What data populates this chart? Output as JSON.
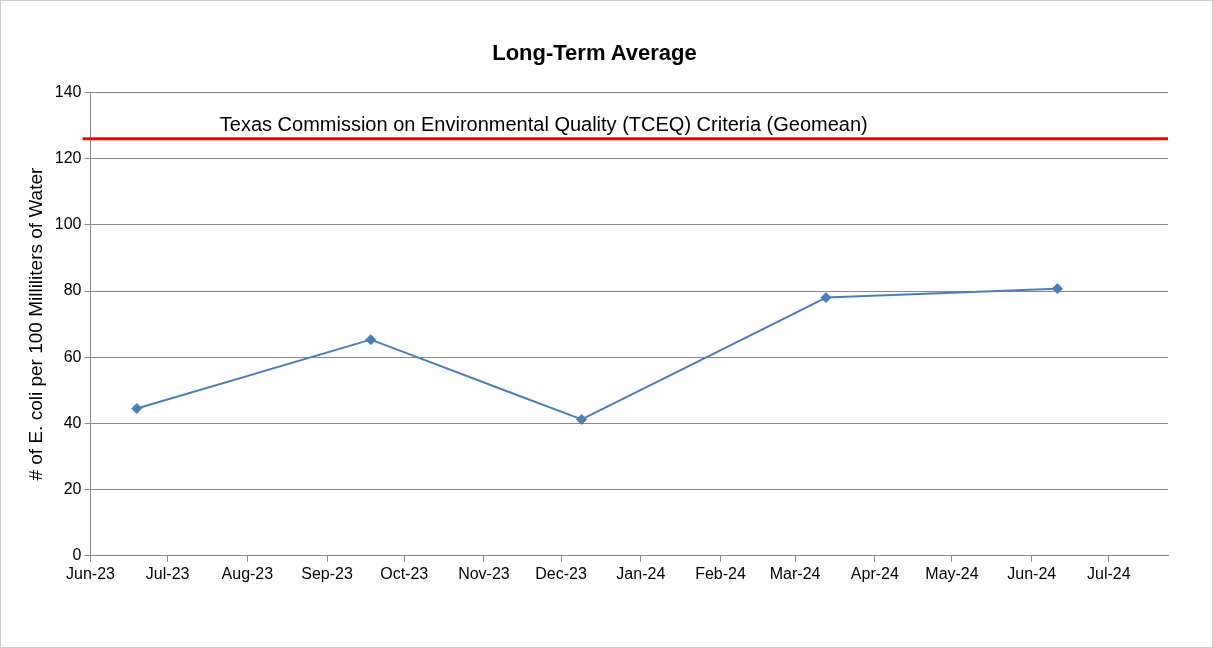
{
  "chart_data": {
    "type": "line",
    "title": "Long-Term Average",
    "ylabel": "# of E. coli per 100 Milliliters of Water",
    "x": [
      "2023-06-19",
      "2023-09-18",
      "2023-12-09",
      "2024-03-13",
      "2024-06-11"
    ],
    "series": [
      {
        "color": "#4a7ebb",
        "values": [
          44.5,
          65.3,
          41.2,
          78,
          80.7
        ]
      }
    ],
    "xlim": [
      "2023-06-01",
      "2024-07-24"
    ],
    "xticks": [
      {
        "value": "2023-06-01",
        "label": "Jun-23"
      },
      {
        "value": "2023-07-01",
        "label": "Jul-23"
      },
      {
        "value": "2023-08-01",
        "label": "Aug-23"
      },
      {
        "value": "2023-09-01",
        "label": "Sep-23"
      },
      {
        "value": "2023-10-01",
        "label": "Oct-23"
      },
      {
        "value": "2023-11-01",
        "label": "Nov-23"
      },
      {
        "value": "2023-12-01",
        "label": "Dec-23"
      },
      {
        "value": "2024-01-01",
        "label": "Jan-24"
      },
      {
        "value": "2024-02-01",
        "label": "Feb-24"
      },
      {
        "value": "2024-03-01",
        "label": "Mar-24"
      },
      {
        "value": "2024-04-01",
        "label": "Apr-24"
      },
      {
        "value": "2024-05-01",
        "label": "May-24"
      },
      {
        "value": "2024-06-01",
        "label": "Jun-24"
      },
      {
        "value": "2024-07-01",
        "label": "Jul-24"
      }
    ],
    "ylim": [
      0,
      140
    ],
    "yticks": [
      0,
      20,
      40,
      60,
      80,
      100,
      120,
      140
    ],
    "ref_lines": [
      {
        "axis": "y",
        "value": 126,
        "label": "Texas Commission on Environmental Quality (TCEQ) Criteria (Geomean)",
        "color": "#ff0000"
      }
    ],
    "grid": "y",
    "marker": "diamond",
    "line_style": "solid",
    "legend": false
  }
}
